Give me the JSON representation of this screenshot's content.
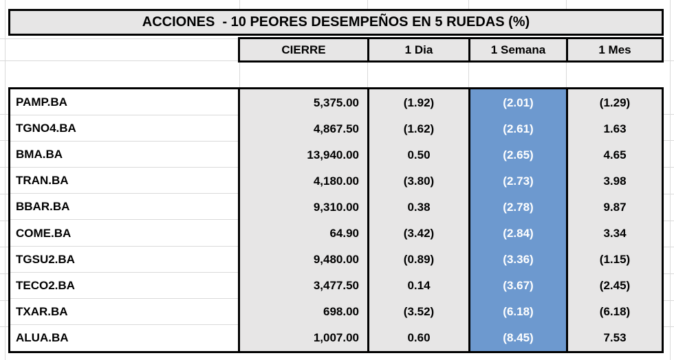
{
  "chart_data": {
    "type": "table",
    "title": "ACCIONES  - 10 PEORES DESEMPEÑOS EN 5 RUEDAS (%)",
    "columns": [
      "CIERRE",
      "1 Dia",
      "1 Semana",
      "1 Mes"
    ],
    "highlight_column": "1 Semana",
    "rows": [
      {
        "ticker": "PAMP.BA",
        "cierre": "5,375.00",
        "dia1": "(1.92)",
        "semana1": "(2.01)",
        "mes1": "(1.29)"
      },
      {
        "ticker": "TGNO4.BA",
        "cierre": "4,867.50",
        "dia1": "(1.62)",
        "semana1": "(2.61)",
        "mes1": "1.63"
      },
      {
        "ticker": "BMA.BA",
        "cierre": "13,940.00",
        "dia1": "0.50",
        "semana1": "(2.65)",
        "mes1": "4.65"
      },
      {
        "ticker": "TRAN.BA",
        "cierre": "4,180.00",
        "dia1": "(3.80)",
        "semana1": "(2.73)",
        "mes1": "3.98"
      },
      {
        "ticker": "BBAR.BA",
        "cierre": "9,310.00",
        "dia1": "0.38",
        "semana1": "(2.78)",
        "mes1": "9.87"
      },
      {
        "ticker": "COME.BA",
        "cierre": "64.90",
        "dia1": "(3.42)",
        "semana1": "(2.84)",
        "mes1": "3.34"
      },
      {
        "ticker": "TGSU2.BA",
        "cierre": "9,480.00",
        "dia1": "(0.89)",
        "semana1": "(3.36)",
        "mes1": "(1.15)"
      },
      {
        "ticker": "TECO2.BA",
        "cierre": "3,477.50",
        "dia1": "0.14",
        "semana1": "(3.67)",
        "mes1": "(2.45)"
      },
      {
        "ticker": "TXAR.BA",
        "cierre": "698.00",
        "dia1": "(3.52)",
        "semana1": "(6.18)",
        "mes1": "(6.18)"
      },
      {
        "ticker": "ALUA.BA",
        "cierre": "1,007.00",
        "dia1": "0.60",
        "semana1": "(8.45)",
        "mes1": "7.53"
      }
    ],
    "colors": {
      "cell_fill": "#e7e6e6",
      "highlight_fill": "#6d99cf",
      "highlight_text": "#ffffff",
      "border": "#000000",
      "gridline": "#d9d9d9"
    }
  }
}
